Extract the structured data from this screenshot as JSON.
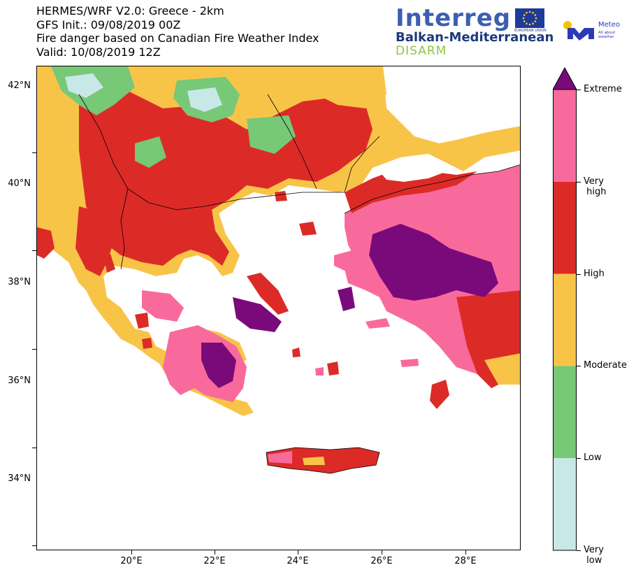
{
  "title_lines": [
    "HERMES/WRF V2.0: Greece - 2km",
    "GFS Init.: 09/08/2019 00Z",
    "Fire danger based on Canadian Fire Weather Index",
    "Valid: 10/08/2019 12Z"
  ],
  "logos": {
    "interreg_word": "Interreg",
    "programme": "Balkan-Mediterranean",
    "project": "DISARM",
    "eu_text": "EUROPEAN UNION",
    "meteo_name": "Meteo",
    "meteo_sub_1": "All about",
    "meteo_sub_2": "weather"
  },
  "axes": {
    "lat_labels": [
      "42°N",
      "40°N",
      "38°N",
      "36°N",
      "34°N"
    ],
    "lon_labels": [
      "20°E",
      "22°E",
      "24°E",
      "26°E",
      "28°E"
    ]
  },
  "colorbar": {
    "levels": [
      {
        "label": "Very\n low",
        "color": "#c8e8e8"
      },
      {
        "label": "Low",
        "color": "#77c877"
      },
      {
        "label": "Moderate",
        "color": "#f8c448"
      },
      {
        "label": "High",
        "color": "#dc2b27"
      },
      {
        "label": "Very\n high",
        "color": "#f96a9c"
      },
      {
        "label": "Extreme",
        "color": "#7a0a7a"
      }
    ],
    "extend_arrow_color": "#7a0a7a"
  },
  "colors": {
    "sea": "#ffffff",
    "very_low": "#c8e8e8",
    "low": "#77c877",
    "moderate": "#f8c448",
    "high": "#dc2b27",
    "very_high": "#f96a9c",
    "extreme": "#7a0a7a"
  }
}
